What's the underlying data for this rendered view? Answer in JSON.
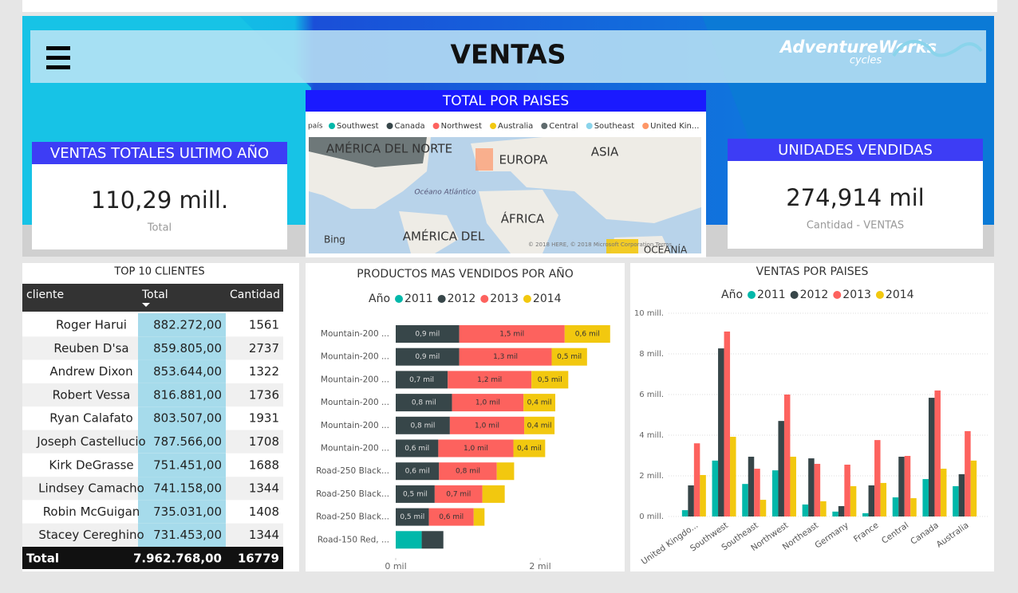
{
  "header": {
    "title": "VENTAS",
    "logo": "AdventureWorks",
    "logo_sub": "cycles"
  },
  "kpis": [
    {
      "title": "VENTAS TOTALES ULTIMO AÑO",
      "value": "110,29 mill.",
      "caption": "Total"
    },
    {
      "title": "UNIDADES VENDIDAS",
      "value": "274,914 mil",
      "caption": "Cantidad - VENTAS"
    }
  ],
  "map": {
    "title": "TOTAL POR PAISES",
    "legend_title": "país",
    "legend": [
      {
        "name": "Southwest",
        "color": "#01b8aa"
      },
      {
        "name": "Canada",
        "color": "#374649"
      },
      {
        "name": "Northwest",
        "color": "#fd625e"
      },
      {
        "name": "Australia",
        "color": "#f2c80f"
      },
      {
        "name": "Central",
        "color": "#5f6b6d"
      },
      {
        "name": "Southeast",
        "color": "#8ad4eb"
      },
      {
        "name": "United Kin...",
        "color": "#fe9666"
      }
    ],
    "labels": [
      "AMÉRICA DEL NORTE",
      "EUROPA",
      "ASIA",
      "ÁFRICA",
      "AMÉRICA DEL",
      "Océano Atlántico",
      "OCEANÍA"
    ],
    "provider": "Bing",
    "copyright": "© 2018 HERE, © 2018 Microsoft Corporation Terms"
  },
  "table": {
    "title": "TOP 10 CLIENTES",
    "columns": [
      "cliente",
      "Total",
      "Cantidad"
    ],
    "rows": [
      [
        "Roger Harui",
        "882.272,00",
        "1561"
      ],
      [
        "Reuben D'sa",
        "859.805,00",
        "2737"
      ],
      [
        "Andrew Dixon",
        "853.644,00",
        "1322"
      ],
      [
        "Robert Vessa",
        "816.881,00",
        "1736"
      ],
      [
        "Ryan Calafato",
        "803.507,00",
        "1931"
      ],
      [
        "Joseph Castellucio",
        "787.566,00",
        "1708"
      ],
      [
        "Kirk DeGrasse",
        "751.451,00",
        "1688"
      ],
      [
        "Lindsey Camacho",
        "741.158,00",
        "1344"
      ],
      [
        "Robin McGuigan",
        "735.031,00",
        "1408"
      ],
      [
        "Stacey Cereghino",
        "731.453,00",
        "1344"
      ]
    ],
    "total": [
      "Total",
      "7.962.768,00",
      "16779"
    ]
  },
  "chart_data": [
    {
      "type": "stacked-hbar",
      "title": "PRODUCTOS MAS VENDIDOS POR AÑO",
      "legend_title": "Año",
      "categories": [
        "Mountain-200 ...",
        "Mountain-200 ...",
        "Mountain-200 ...",
        "Mountain-200 ...",
        "Mountain-200 ...",
        "Mountain-200 ...",
        "Road-250 Black...",
        "Road-250 Black...",
        "Road-250 Black...",
        "Road-150 Red, ..."
      ],
      "series": [
        {
          "name": "2011",
          "color": "#01b8aa",
          "values": [
            0,
            0,
            0,
            0,
            0,
            0,
            0,
            0,
            0,
            0.36
          ],
          "value_labels": [
            null,
            null,
            null,
            null,
            null,
            null,
            null,
            null,
            null,
            null
          ]
        },
        {
          "name": "2012",
          "color": "#374649",
          "values": [
            0.88,
            0.88,
            0.72,
            0.78,
            0.75,
            0.59,
            0.6,
            0.54,
            0.46,
            0.3
          ],
          "value_labels": [
            "0,9 mil",
            "0,9 mil",
            "0,7 mil",
            "0,8 mil",
            "0,8 mil",
            "0,6 mil",
            "0,6 mil",
            "0,5 mil",
            "0,5 mil",
            null
          ]
        },
        {
          "name": "2013",
          "color": "#fd625e",
          "values": [
            1.46,
            1.28,
            1.16,
            0.99,
            1.03,
            1.04,
            0.8,
            0.66,
            0.62,
            0
          ],
          "value_labels": [
            "1,5 mil",
            "1,3 mil",
            "1,2 mil",
            "1,0 mil",
            "1,0 mil",
            "1,0 mil",
            "0,8 mil",
            "0,7 mil",
            "0,6 mil",
            null
          ]
        },
        {
          "name": "2014",
          "color": "#f2c80f",
          "values": [
            0.63,
            0.49,
            0.51,
            0.44,
            0.42,
            0.44,
            0.24,
            0.31,
            0.15,
            0
          ],
          "value_labels": [
            "0,6 mil",
            "0,5 mil",
            "0,5 mil",
            "0,4 mil",
            "0,4 mil",
            "0,4 mil",
            null,
            null,
            null,
            null
          ]
        }
      ],
      "xlim": [
        0,
        3
      ],
      "xticks": [
        {
          "value": 0,
          "label": "0 mil"
        },
        {
          "value": 2,
          "label": "2 mil"
        }
      ]
    },
    {
      "type": "grouped-bar",
      "title": "VENTAS POR PAISES",
      "legend_title": "Año",
      "categories": [
        "United Kingdo...",
        "Southwest",
        "Southeast",
        "Northwest",
        "Northeast",
        "Germany",
        "France",
        "Central",
        "Canada",
        "Australia"
      ],
      "series": [
        {
          "name": "2011",
          "color": "#01b8aa",
          "values": [
            0.31,
            2.75,
            1.6,
            2.27,
            0.59,
            0.24,
            0.16,
            0.94,
            1.84,
            1.49
          ]
        },
        {
          "name": "2012",
          "color": "#374649",
          "values": [
            1.53,
            8.27,
            2.94,
            4.7,
            2.86,
            0.51,
            1.53,
            2.94,
            5.84,
            2.08
          ]
        },
        {
          "name": "2013",
          "color": "#fd625e",
          "values": [
            3.6,
            9.1,
            2.35,
            6.0,
            2.59,
            2.55,
            3.76,
            2.98,
            6.2,
            4.2
          ]
        },
        {
          "name": "2014",
          "color": "#f2c80f",
          "values": [
            2.04,
            3.92,
            0.82,
            2.94,
            0.75,
            1.49,
            1.65,
            0.9,
            2.35,
            2.75
          ]
        }
      ],
      "ylim": [
        0,
        10
      ],
      "yticks": [
        {
          "value": 0,
          "label": "0 mill."
        },
        {
          "value": 2,
          "label": "2 mill."
        },
        {
          "value": 4,
          "label": "4 mill."
        },
        {
          "value": 6,
          "label": "6 mill."
        },
        {
          "value": 8,
          "label": "8 mill."
        },
        {
          "value": 10,
          "label": "10 mill."
        }
      ],
      "grid": true
    }
  ]
}
